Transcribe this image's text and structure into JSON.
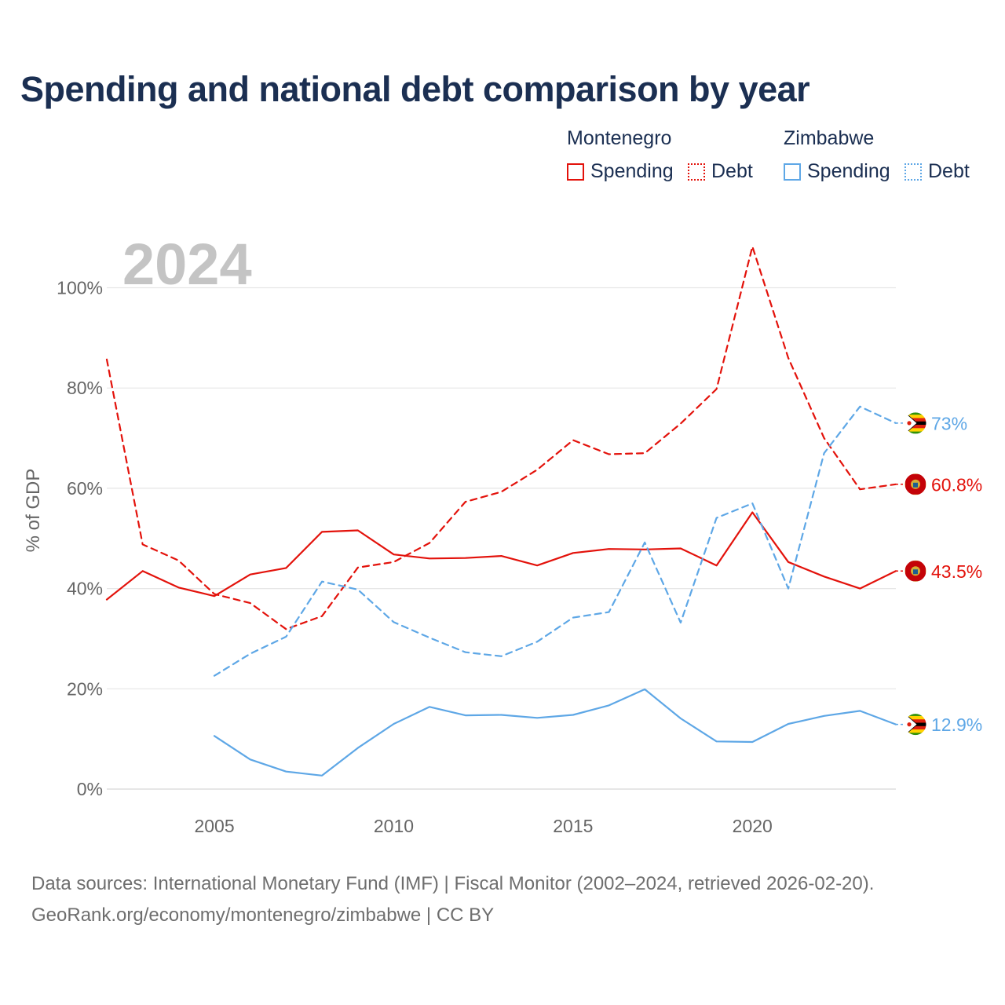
{
  "title": "Spending and national debt comparison by year",
  "legend": {
    "groups": [
      {
        "name": "Montenegro",
        "color": "#e3120b",
        "items": [
          {
            "label": "Spending",
            "style": "solid"
          },
          {
            "label": "Debt",
            "style": "dotted"
          }
        ]
      },
      {
        "name": "Zimbabwe",
        "color": "#5ea7e6",
        "items": [
          {
            "label": "Spending",
            "style": "solid"
          },
          {
            "label": "Debt",
            "style": "dotted"
          }
        ]
      }
    ]
  },
  "sources": {
    "line1": "Data sources: International Monetary Fund (IMF) | Fiscal Monitor (2002–2024, retrieved 2026-02-20).",
    "line2": "GeoRank.org/economy/montenegro/zimbabwe | CC BY"
  },
  "colors": {
    "montenegro": "#e3120b",
    "zimbabwe": "#5ea7e6",
    "grid": "#e6e6e6",
    "axis_text": "#666666",
    "year_watermark": "#c4c4c4"
  },
  "chart_data": {
    "type": "line",
    "year_label": "2024",
    "ylabel": "% of GDP",
    "xlim": [
      2002,
      2024
    ],
    "ylim": [
      0,
      100
    ],
    "yticks": [
      0,
      20,
      40,
      60,
      80,
      100
    ],
    "ytick_labels": [
      "0%",
      "20%",
      "40%",
      "60%",
      "80%",
      "100%"
    ],
    "xticks": [
      2005,
      2010,
      2015,
      2020
    ],
    "xtick_labels": [
      "2005",
      "2010",
      "2015",
      "2020"
    ],
    "grid": true,
    "series": [
      {
        "name": "Montenegro Spending",
        "country": "Montenegro",
        "color": "#e3120b",
        "dash": "solid",
        "x": [
          2002,
          2003,
          2004,
          2005,
          2006,
          2007,
          2008,
          2009,
          2010,
          2011,
          2012,
          2013,
          2014,
          2015,
          2016,
          2017,
          2018,
          2019,
          2020,
          2021,
          2022,
          2023,
          2024
        ],
        "values": [
          37.8,
          43.5,
          40.2,
          38.5,
          42.8,
          44.1,
          51.3,
          51.6,
          46.8,
          46.0,
          46.1,
          46.5,
          44.6,
          47.1,
          47.9,
          47.8,
          48.0,
          44.6,
          55.2,
          45.3,
          42.4,
          40.0,
          43.5
        ],
        "end_label": "43.5%",
        "flag": "montenegro"
      },
      {
        "name": "Montenegro Debt",
        "country": "Montenegro",
        "color": "#e3120b",
        "dash": "dashed",
        "x": [
          2002,
          2003,
          2004,
          2005,
          2006,
          2007,
          2008,
          2009,
          2010,
          2011,
          2012,
          2013,
          2014,
          2015,
          2016,
          2017,
          2018,
          2019,
          2020,
          2021,
          2022,
          2023,
          2024
        ],
        "values": [
          85.7,
          48.8,
          45.6,
          38.9,
          37.1,
          31.9,
          34.5,
          44.2,
          45.3,
          49.1,
          57.3,
          59.3,
          63.7,
          69.6,
          66.8,
          67.0,
          72.9,
          79.8,
          108.2,
          86.0,
          70.0,
          59.8,
          60.8
        ],
        "end_label": "60.8%",
        "flag": "montenegro"
      },
      {
        "name": "Zimbabwe Spending",
        "country": "Zimbabwe",
        "color": "#5ea7e6",
        "dash": "solid",
        "x": [
          2005,
          2006,
          2007,
          2008,
          2009,
          2010,
          2011,
          2012,
          2013,
          2014,
          2015,
          2016,
          2017,
          2018,
          2019,
          2020,
          2021,
          2022,
          2023,
          2024
        ],
        "values": [
          10.6,
          5.9,
          3.5,
          2.7,
          8.2,
          13.0,
          16.4,
          14.7,
          14.8,
          14.2,
          14.8,
          16.7,
          19.9,
          14.1,
          9.5,
          9.4,
          13.0,
          14.6,
          15.6,
          12.9
        ],
        "end_label": "12.9%",
        "flag": "zimbabwe"
      },
      {
        "name": "Zimbabwe Debt",
        "country": "Zimbabwe",
        "color": "#5ea7e6",
        "dash": "dashed",
        "x": [
          2005,
          2006,
          2007,
          2008,
          2009,
          2010,
          2011,
          2012,
          2013,
          2014,
          2015,
          2016,
          2017,
          2018,
          2019,
          2020,
          2021,
          2022,
          2023,
          2024
        ],
        "values": [
          22.6,
          27.0,
          30.4,
          41.4,
          39.8,
          33.3,
          30.2,
          27.3,
          26.5,
          29.4,
          34.2,
          35.3,
          49.2,
          33.2,
          54.1,
          57.0,
          40.0,
          67.0,
          76.3,
          73.0
        ],
        "end_label": "73%",
        "flag": "zimbabwe"
      }
    ]
  }
}
